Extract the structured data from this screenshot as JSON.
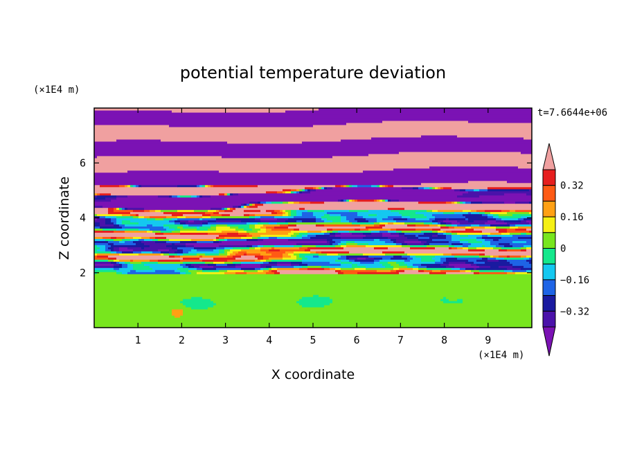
{
  "chart_data": {
    "type": "heatmap",
    "title": "potential temperature deviation",
    "xlabel": "X coordinate",
    "ylabel": "Z coordinate",
    "x_unit": "(×1E4 m)",
    "y_unit": "(×1E4 m)",
    "time_label": "t=7.6644e+06",
    "xlim": [
      0,
      10
    ],
    "ylim": [
      0,
      8
    ],
    "x_ticks": [
      "1",
      "2",
      "3",
      "4",
      "5",
      "6",
      "7",
      "8",
      "9"
    ],
    "y_ticks": [
      "2",
      "4",
      "6"
    ],
    "colorbar": {
      "levels": [
        -0.4,
        -0.32,
        -0.24,
        -0.16,
        -0.08,
        0,
        0.08,
        0.16,
        0.24,
        0.32,
        0.4
      ],
      "tick_labels": [
        "0.32",
        "0.16",
        "0",
        "−0.16",
        "−0.32"
      ],
      "colors": [
        "#7b12b4",
        "#4b12aa",
        "#1a1aa0",
        "#1e64e6",
        "#14c8f0",
        "#14e88c",
        "#78e61e",
        "#f5f014",
        "#ffa014",
        "#ff5a14",
        "#e61e1e",
        "#f0a0a0"
      ]
    },
    "description_regions": [
      {
        "z_range": [
          0,
          2
        ],
        "dominant_value": 0.02
      },
      {
        "z_range": [
          2,
          5.2
        ],
        "dominant_value": "mixed (-0.4 to 0.4)"
      },
      {
        "z_range": [
          5.2,
          8
        ],
        "dominant_value": "alternating -0.4 / 0.4 bands"
      }
    ]
  }
}
